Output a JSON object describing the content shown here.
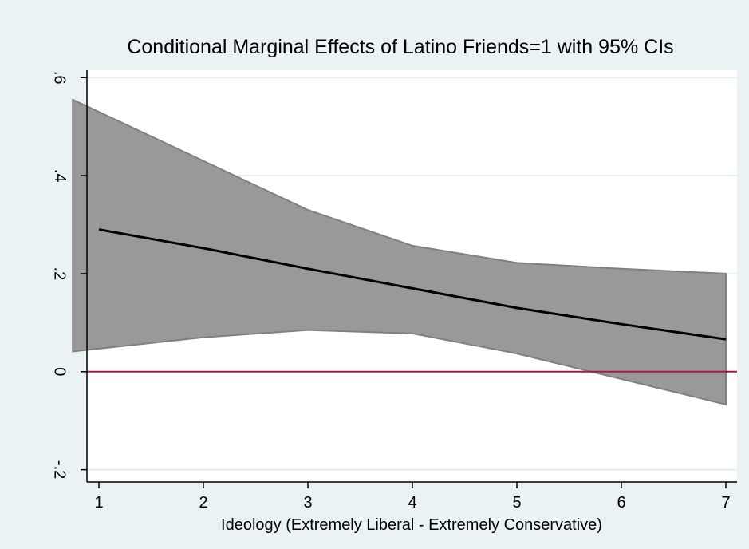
{
  "chart_data": {
    "type": "line",
    "title": "Conditional Marginal Effects of Latino Friends=1 with 95% CIs",
    "xlabel": "Ideology (Extremely Liberal - Extremely Conservative)",
    "ylabel": "",
    "x": [
      1,
      2,
      3,
      4,
      5,
      6,
      7
    ],
    "xticks": [
      "1",
      "2",
      "3",
      "4",
      "5",
      "6",
      "7"
    ],
    "yticks": [
      {
        "value": -0.2,
        "label": "-.2"
      },
      {
        "value": 0,
        "label": "0"
      },
      {
        "value": 0.2,
        "label": ".2"
      },
      {
        "value": 0.4,
        "label": ".4"
      },
      {
        "value": 0.6,
        "label": ".6"
      }
    ],
    "xlim": [
      0.87,
      7.12
    ],
    "ylim": [
      -0.225,
      0.615
    ],
    "estimate": [
      0.29,
      0.252,
      0.21,
      0.17,
      0.13,
      0.097,
      0.066
    ],
    "ci_upper": [
      0.53,
      0.43,
      0.33,
      0.257,
      0.222,
      0.21,
      0.2
    ],
    "ci_lower": [
      0.047,
      0.07,
      0.085,
      0.078,
      0.037,
      -0.015,
      -0.067
    ],
    "reference_line": 0,
    "grid": "horizontal",
    "colors": {
      "background": "#eaf2f3",
      "plot_area": "#ffffff",
      "ci_fill": "#999999",
      "ci_edge": "#808080",
      "estimate_line": "#000000",
      "reference_line": "#b0183c",
      "grid": "#e6eff0"
    }
  }
}
